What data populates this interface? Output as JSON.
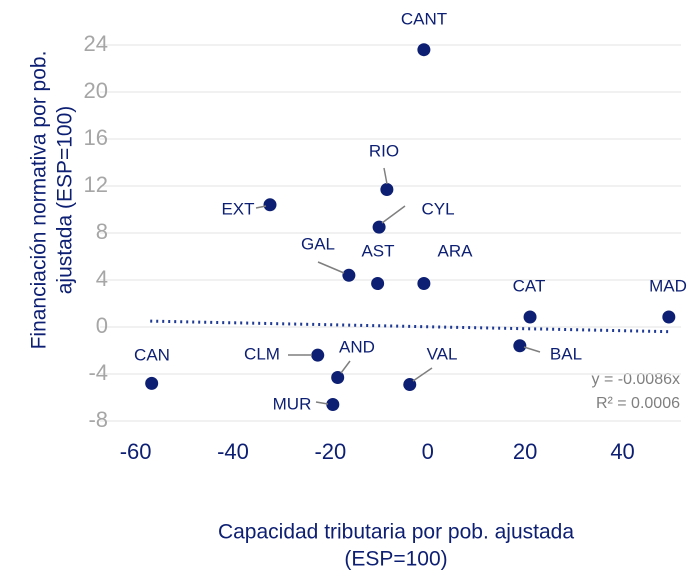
{
  "chart_data": {
    "type": "scatter",
    "xlabel": [
      "Capacidad tributaria por pob. ajustada",
      "(ESP=100)"
    ],
    "ylabel": [
      "Financiación normativa por pob.",
      "ajustada (ESP=100)"
    ],
    "labels": [
      "CANT",
      "RIO",
      "EXT",
      "CYL",
      "GAL",
      "AST",
      "ARA",
      "CAT",
      "MAD",
      "BAL",
      "CLM",
      "AND",
      "VAL",
      "CAN",
      "MUR"
    ],
    "x": [
      -0.8,
      -8.4,
      -32.4,
      -10,
      -16.2,
      -10.3,
      -0.8,
      21,
      49.5,
      18.9,
      -22.6,
      -18.5,
      -3.7,
      -56.7,
      -19.5
    ],
    "values": [
      23.6,
      11.7,
      10.4,
      8.5,
      4.4,
      3.7,
      3.7,
      0.85,
      0.85,
      -1.6,
      -2.4,
      -4.3,
      -4.9,
      -4.8,
      -6.6
    ],
    "color": "#0d1f73",
    "trendline": {
      "x": [
        -57,
        50
      ],
      "values": [
        0.5,
        -0.4
      ],
      "color": "#1f3a93"
    },
    "annotations": [
      "y = -0.0086x",
      "R² = 0.0006"
    ],
    "xlim": [
      -63,
      52
    ],
    "ylim": [
      -9.5,
      26
    ],
    "xticks": [
      -60,
      -40,
      -20,
      0,
      20,
      40
    ],
    "yticks": [
      -8,
      -4,
      0,
      4,
      8,
      12,
      16,
      20,
      24
    ],
    "grid": true
  }
}
